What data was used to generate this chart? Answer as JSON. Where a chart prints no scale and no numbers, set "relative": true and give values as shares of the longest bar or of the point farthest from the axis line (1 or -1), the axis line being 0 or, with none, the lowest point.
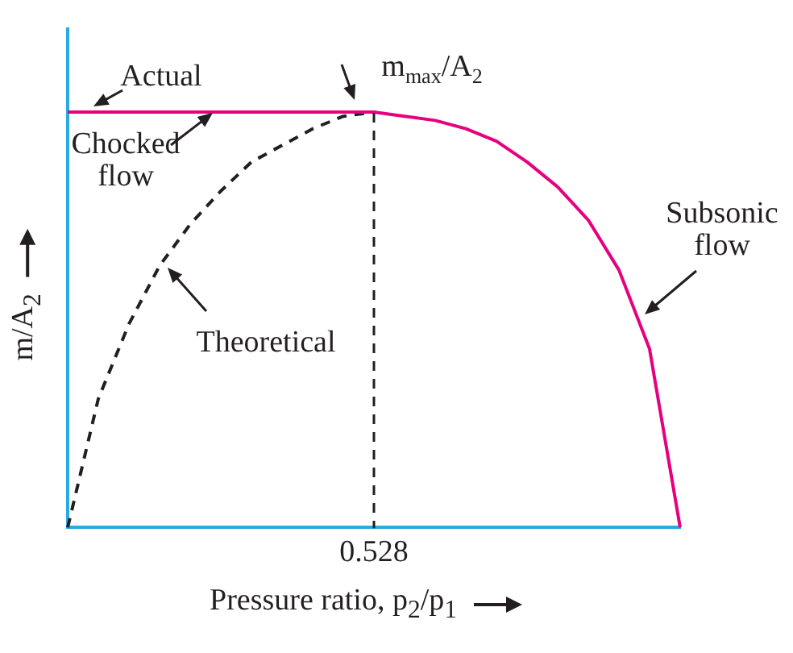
{
  "chart_data": {
    "type": "line",
    "relative": true,
    "xlabel": "Pressure ratio, p$_{2}$/p$_{1}$",
    "ylabel": "m/A$_{2}$",
    "legend": false,
    "marker": "none",
    "categories": [
      null,
      null,
      null,
      null,
      null,
      null,
      null,
      null,
      null,
      null,
      null,
      null,
      null,
      null,
      null,
      null,
      null,
      null,
      null,
      null,
      null
    ],
    "series": [
      {
        "color": "#e6007e",
        "line_style": "solid",
        "values": [
          1,
          1,
          1,
          1,
          1,
          1,
          1,
          1,
          1,
          1,
          1,
          0.99,
          0.98,
          0.96,
          0.93,
          0.88,
          0.82,
          0.74,
          0.62,
          0.43,
          0
        ]
      },
      {
        "color": "#231f20",
        "line_style": "dashed",
        "values": [
          0,
          0.31,
          0.49,
          0.63,
          0.73,
          0.81,
          0.88,
          0.92,
          0.96,
          0.99,
          1,
          null,
          null,
          null,
          null,
          null,
          null,
          null,
          null,
          null,
          null
        ]
      }
    ],
    "annotations": [
      "Actual",
      "m$_{max}$/A$_{2}$",
      "Chocked\nflow",
      "Theoretical",
      "Subsonic\nflow",
      "0.528"
    ]
  }
}
